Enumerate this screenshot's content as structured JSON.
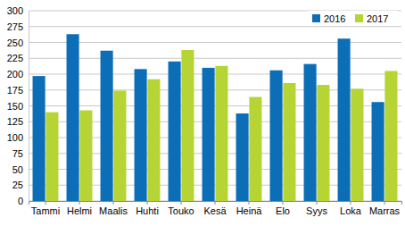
{
  "chart_data": {
    "type": "bar",
    "categories": [
      "Tammi",
      "Helmi",
      "Maalis",
      "Huhti",
      "Touko",
      "Kesä",
      "Heinä",
      "Elo",
      "Syys",
      "Loka",
      "Marras"
    ],
    "series": [
      {
        "name": "2016",
        "color": "#0b6eb6",
        "values": [
          197,
          263,
          237,
          208,
          220,
          210,
          138,
          206,
          216,
          256,
          156
        ]
      },
      {
        "name": "2017",
        "color": "#b6d433",
        "values": [
          140,
          143,
          174,
          192,
          238,
          213,
          164,
          186,
          183,
          177,
          205
        ]
      }
    ],
    "ylim": [
      0,
      300
    ],
    "yticks": [
      0,
      25,
      50,
      75,
      100,
      125,
      150,
      175,
      200,
      225,
      250,
      275,
      300
    ],
    "grid": true,
    "legend": "top-right"
  }
}
